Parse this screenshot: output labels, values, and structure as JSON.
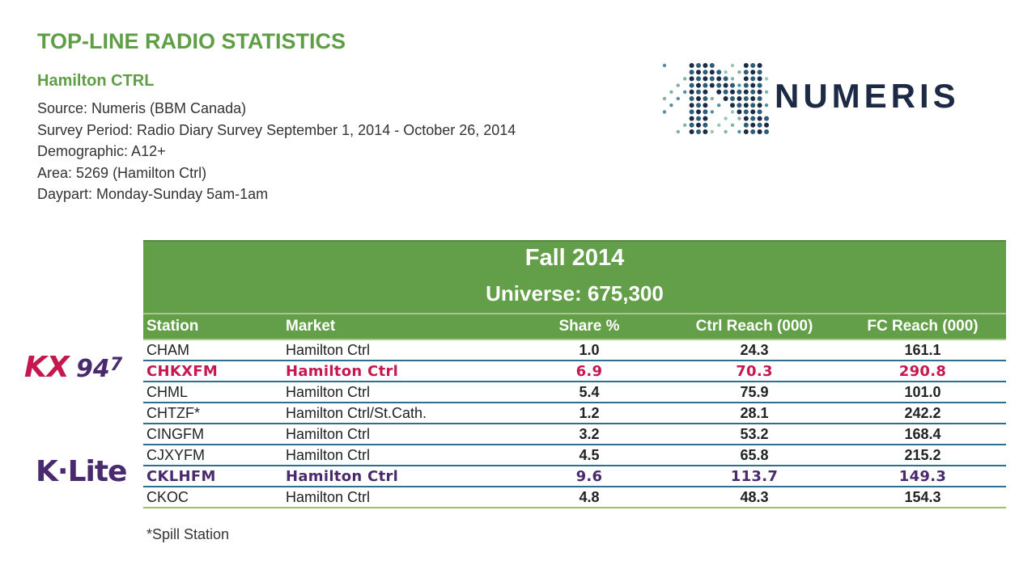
{
  "header": {
    "title": "TOP-LINE RADIO STATISTICS",
    "subtitle": "Hamilton CTRL",
    "info": [
      "Source: Numeris (BBM Canada)",
      "Survey Period:  Radio Diary Survey September 1, 2014 - October 26, 2014",
      "Demographic: A12+",
      "Area: 5269 (Hamilton Ctrl)",
      "Daypart: Monday-Sunday 5am-1am"
    ]
  },
  "logos": {
    "numeris": "NUMERIS",
    "kx_main": "KX",
    "kx_num": "94",
    "kx_sub": "7",
    "klite": "K·Lite"
  },
  "table": {
    "title": "Fall 2014",
    "universe": "Universe: 675,300",
    "columns": [
      "Station",
      "Market",
      "Share %",
      "Ctrl Reach (000)",
      "FC Reach (000)"
    ],
    "rows": [
      {
        "station": "CHAM",
        "market": "Hamilton Ctrl",
        "share": "1.0",
        "ctrl": "24.3",
        "fc": "161.1"
      },
      {
        "station": "CHKXFM",
        "market": "Hamilton Ctrl",
        "share": "6.9",
        "ctrl": "70.3",
        "fc": "290.8"
      },
      {
        "station": "CHML",
        "market": "Hamilton Ctrl",
        "share": "5.4",
        "ctrl": "75.9",
        "fc": "101.0"
      },
      {
        "station": "CHTZF*",
        "market": "Hamilton Ctrl/St.Cath.",
        "share": "1.2",
        "ctrl": "28.1",
        "fc": "242.2"
      },
      {
        "station": "CINGFM",
        "market": "Hamilton Ctrl",
        "share": "3.2",
        "ctrl": "53.2",
        "fc": "168.4"
      },
      {
        "station": "CJXYFM",
        "market": "Hamilton Ctrl",
        "share": "4.5",
        "ctrl": "65.8",
        "fc": "215.2"
      },
      {
        "station": "CKLHFM",
        "market": "Hamilton Ctrl",
        "share": "9.6",
        "ctrl": "113.7",
        "fc": "149.3"
      },
      {
        "station": "CKOC",
        "market": "Hamilton Ctrl",
        "share": "4.8",
        "ctrl": "48.3",
        "fc": "154.3"
      }
    ]
  },
  "footnote": "*Spill Station",
  "colors": {
    "green": "#639f48",
    "title_green": "#5f9e46",
    "highlight_red": "#c4184f",
    "highlight_purple": "#4a2a6e",
    "row_line": "#2d6f8f"
  }
}
